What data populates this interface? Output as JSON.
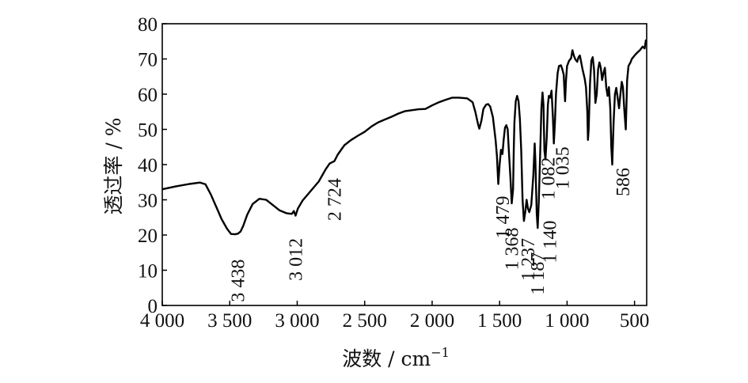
{
  "chart_data": {
    "type": "line",
    "title": "",
    "xlabel_main": "波数 / cm",
    "xlabel_sup": "−1",
    "ylabel": "透过率 / %",
    "xlim": [
      4000,
      410
    ],
    "ylim": [
      0,
      80
    ],
    "x_reversed": true,
    "grid": false,
    "xticks": [
      {
        "value": 4000,
        "label": "4 000"
      },
      {
        "value": 3500,
        "label": "3 500"
      },
      {
        "value": 3000,
        "label": "3 000"
      },
      {
        "value": 2500,
        "label": "2 500"
      },
      {
        "value": 2000,
        "label": "2 000"
      },
      {
        "value": 1500,
        "label": "1 500"
      },
      {
        "value": 1000,
        "label": "1 000"
      },
      {
        "value": 500,
        "label": "500"
      }
    ],
    "yticks": [
      {
        "value": 0,
        "label": "0"
      },
      {
        "value": 10,
        "label": "10"
      },
      {
        "value": 20,
        "label": "20"
      },
      {
        "value": 30,
        "label": "30"
      },
      {
        "value": 40,
        "label": "40"
      },
      {
        "value": 50,
        "label": "50"
      },
      {
        "value": 60,
        "label": "60"
      },
      {
        "value": 70,
        "label": "70"
      },
      {
        "value": 80,
        "label": "80"
      }
    ],
    "series": [
      {
        "color": "#000000",
        "points": [
          [
            4000,
            33.0
          ],
          [
            3900,
            33.8
          ],
          [
            3800,
            34.5
          ],
          [
            3720,
            34.9
          ],
          [
            3680,
            34.4
          ],
          [
            3640,
            31.5
          ],
          [
            3600,
            28.0
          ],
          [
            3560,
            24.5
          ],
          [
            3520,
            21.8
          ],
          [
            3490,
            20.3
          ],
          [
            3460,
            20.2
          ],
          [
            3438,
            20.4
          ],
          [
            3420,
            21.0
          ],
          [
            3400,
            22.6
          ],
          [
            3370,
            25.8
          ],
          [
            3330,
            28.8
          ],
          [
            3280,
            30.3
          ],
          [
            3230,
            30.0
          ],
          [
            3180,
            28.5
          ],
          [
            3130,
            27.0
          ],
          [
            3080,
            26.2
          ],
          [
            3040,
            26.0
          ],
          [
            3025,
            26.8
          ],
          [
            3012,
            25.5
          ],
          [
            2995,
            27.5
          ],
          [
            2960,
            29.8
          ],
          [
            2900,
            32.5
          ],
          [
            2840,
            35.2
          ],
          [
            2790,
            38.6
          ],
          [
            2760,
            40.3
          ],
          [
            2724,
            41.0
          ],
          [
            2700,
            42.8
          ],
          [
            2650,
            45.5
          ],
          [
            2600,
            47.0
          ],
          [
            2550,
            48.2
          ],
          [
            2500,
            49.3
          ],
          [
            2450,
            50.8
          ],
          [
            2400,
            52.0
          ],
          [
            2350,
            52.8
          ],
          [
            2300,
            53.6
          ],
          [
            2250,
            54.5
          ],
          [
            2200,
            55.2
          ],
          [
            2100,
            55.7
          ],
          [
            2050,
            55.8
          ],
          [
            2000,
            56.8
          ],
          [
            1950,
            57.7
          ],
          [
            1900,
            58.4
          ],
          [
            1850,
            59.0
          ],
          [
            1800,
            59.0
          ],
          [
            1740,
            58.8
          ],
          [
            1700,
            57.7
          ],
          [
            1680,
            55.0
          ],
          [
            1660,
            51.5
          ],
          [
            1650,
            50.2
          ],
          [
            1635,
            52.5
          ],
          [
            1620,
            55.8
          ],
          [
            1600,
            57.0
          ],
          [
            1585,
            57.2
          ],
          [
            1570,
            56.5
          ],
          [
            1550,
            53.5
          ],
          [
            1530,
            47.0
          ],
          [
            1520,
            42.5
          ],
          [
            1510,
            34.5
          ],
          [
            1500,
            40.0
          ],
          [
            1490,
            44.2
          ],
          [
            1479,
            43.0
          ],
          [
            1470,
            47.0
          ],
          [
            1460,
            50.5
          ],
          [
            1450,
            51.2
          ],
          [
            1440,
            50.0
          ],
          [
            1430,
            43.0
          ],
          [
            1420,
            36.5
          ],
          [
            1410,
            29.0
          ],
          [
            1400,
            33.0
          ],
          [
            1395,
            44.5
          ],
          [
            1390,
            52.0
          ],
          [
            1380,
            58.0
          ],
          [
            1370,
            59.5
          ],
          [
            1360,
            58.0
          ],
          [
            1350,
            53.0
          ],
          [
            1340,
            44.0
          ],
          [
            1330,
            30.0
          ],
          [
            1320,
            24.0
          ],
          [
            1310,
            26.5
          ],
          [
            1300,
            30.0
          ],
          [
            1290,
            27.5
          ],
          [
            1280,
            26.5
          ],
          [
            1265,
            28.5
          ],
          [
            1250,
            37.0
          ],
          [
            1240,
            46.0
          ],
          [
            1235,
            41.0
          ],
          [
            1225,
            26.0
          ],
          [
            1218,
            22.0
          ],
          [
            1210,
            29.0
          ],
          [
            1200,
            42.0
          ],
          [
            1190,
            56.0
          ],
          [
            1182,
            60.5
          ],
          [
            1175,
            57.0
          ],
          [
            1168,
            44.0
          ],
          [
            1160,
            41.5
          ],
          [
            1150,
            48.0
          ],
          [
            1142,
            57.0
          ],
          [
            1135,
            59.5
          ],
          [
            1125,
            59.0
          ],
          [
            1115,
            61.0
          ],
          [
            1105,
            53.5
          ],
          [
            1098,
            46.0
          ],
          [
            1090,
            52.0
          ],
          [
            1082,
            60.0
          ],
          [
            1070,
            66.0
          ],
          [
            1060,
            68.0
          ],
          [
            1045,
            68.2
          ],
          [
            1035,
            67.0
          ],
          [
            1025,
            65.5
          ],
          [
            1020,
            61.5
          ],
          [
            1015,
            58.0
          ],
          [
            1008,
            64.0
          ],
          [
            1000,
            68.0
          ],
          [
            985,
            69.5
          ],
          [
            970,
            70.2
          ],
          [
            960,
            72.5
          ],
          [
            950,
            71.0
          ],
          [
            940,
            70.0
          ],
          [
            925,
            69.2
          ],
          [
            915,
            70.5
          ],
          [
            905,
            71.0
          ],
          [
            895,
            69.0
          ],
          [
            885,
            67.0
          ],
          [
            870,
            64.5
          ],
          [
            860,
            62.0
          ],
          [
            850,
            55.0
          ],
          [
            845,
            47.0
          ],
          [
            840,
            50.0
          ],
          [
            830,
            63.0
          ],
          [
            820,
            69.5
          ],
          [
            810,
            70.5
          ],
          [
            800,
            67.0
          ],
          [
            790,
            57.5
          ],
          [
            780,
            60.0
          ],
          [
            770,
            67.0
          ],
          [
            760,
            69.0
          ],
          [
            750,
            67.5
          ],
          [
            740,
            64.0
          ],
          [
            730,
            66.0
          ],
          [
            720,
            67.5
          ],
          [
            710,
            62.0
          ],
          [
            700,
            59.5
          ],
          [
            690,
            62.0
          ],
          [
            680,
            56.0
          ],
          [
            672,
            45.0
          ],
          [
            665,
            40.0
          ],
          [
            655,
            52.0
          ],
          [
            645,
            60.0
          ],
          [
            635,
            61.8
          ],
          [
            625,
            59.0
          ],
          [
            615,
            56.0
          ],
          [
            605,
            60.0
          ],
          [
            595,
            63.5
          ],
          [
            586,
            62.0
          ],
          [
            575,
            55.0
          ],
          [
            565,
            50.0
          ],
          [
            555,
            64.0
          ],
          [
            545,
            68.0
          ],
          [
            530,
            69.0
          ],
          [
            520,
            70.0
          ],
          [
            500,
            71.0
          ],
          [
            480,
            71.8
          ],
          [
            460,
            72.5
          ],
          [
            440,
            73.5
          ],
          [
            425,
            73.0
          ],
          [
            415,
            75.5
          ]
        ]
      }
    ],
    "annotations": [
      {
        "text": "3 438",
        "x": 3438,
        "anchor_y": 1
      },
      {
        "text": "3 012",
        "x": 3012,
        "anchor_y": 7
      },
      {
        "text": "2 724",
        "x": 2724,
        "anchor_y": 24
      },
      {
        "text": "1 479",
        "x": 1479,
        "anchor_y": 19
      },
      {
        "text": "1 368",
        "x": 1410,
        "anchor_y": 10
      },
      {
        "text": "1 237",
        "x": 1290,
        "anchor_y": 7
      },
      {
        "text": "1 187",
        "x": 1220,
        "anchor_y": 3
      },
      {
        "text": "1 140",
        "x": 1130,
        "anchor_y": 12
      },
      {
        "text": "1 082",
        "x": 1140,
        "anchor_y": 30
      },
      {
        "text": "1 035",
        "x": 1035,
        "anchor_y": 33
      },
      {
        "text": "586",
        "x": 586,
        "anchor_y": 31
      }
    ]
  }
}
